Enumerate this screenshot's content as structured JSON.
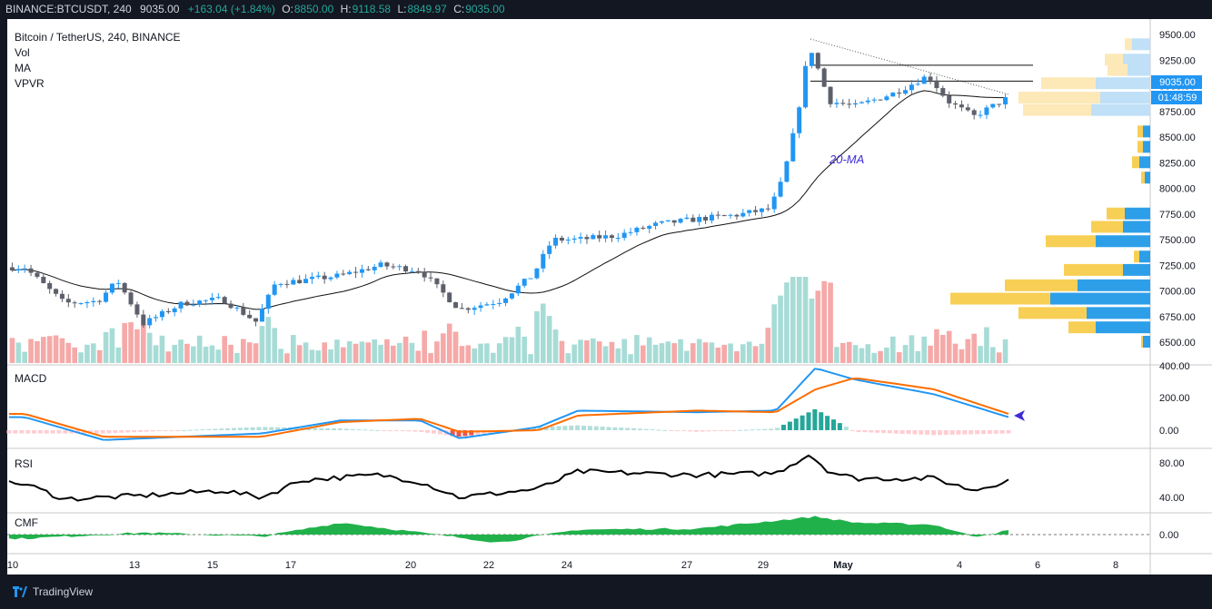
{
  "header": {
    "symbol": "BINANCE:BTCUSDT, 240",
    "last": "9035.00",
    "change": "+163.04 (+1.84%)",
    "o_label": "O:",
    "o": "8850.00",
    "h_label": "H:",
    "h": "9118.58",
    "l_label": "L:",
    "l": "8849.97",
    "c_label": "C:",
    "c": "9035.00"
  },
  "legend": {
    "title": "Bitcoin / TetherUS, 240, BINANCE",
    "items": [
      "Vol",
      "MA",
      "VPVR"
    ]
  },
  "price_axis": {
    "ticks": [
      "9500.00",
      "9250.00",
      "9000.00",
      "8750.00",
      "8500.00",
      "8250.00",
      "8000.00",
      "7750.00",
      "7500.00",
      "7250.00",
      "7000.00",
      "6750.00",
      "6500.00"
    ],
    "current_price": "9035.00",
    "countdown": "01:48:59"
  },
  "annotation": "20-MA",
  "macd": {
    "label": "MACD",
    "ticks": [
      "400.00",
      "200.00",
      "0.00"
    ]
  },
  "rsi": {
    "label": "RSI",
    "ticks": [
      "80.00",
      "40.00"
    ]
  },
  "cmf": {
    "label": "CMF",
    "ticks": [
      "0.00"
    ]
  },
  "x_axis": {
    "labels": [
      "10",
      "13",
      "15",
      "17",
      "20",
      "22",
      "24",
      "27",
      "29",
      "May",
      "4",
      "6",
      "8"
    ]
  },
  "brand": "TradingView",
  "colors": {
    "background": "#131722",
    "up": "#2196f3",
    "down": "#5d606b",
    "vol_up": "#a7dcd6",
    "vol_down": "#f5a9a8",
    "ma": "#000000",
    "macd": "#2196f3",
    "signal": "#ff6d00",
    "cmf": "#21b14b",
    "vpvr_up": "#2d9fe9",
    "vpvr_down": "#f8cf55"
  },
  "chart_data": {
    "type": "candlestick",
    "title": "Bitcoin / TetherUS, 240, BINANCE",
    "timeframe": "240",
    "price_range": [
      6400,
      9600
    ],
    "ohlc_anchor_points": [
      {
        "x": "10",
        "close": 7230
      },
      {
        "x": "11",
        "close": 6880
      },
      {
        "x": "12",
        "close": 6900
      },
      {
        "x": "12",
        "close": 7100
      },
      {
        "x": "13",
        "close": 6680
      },
      {
        "x": "14",
        "close": 6880
      },
      {
        "x": "15",
        "close": 6920
      },
      {
        "x": "16",
        "close": 6700
      },
      {
        "x": "16",
        "close": 7080
      },
      {
        "x": "17",
        "close": 7100
      },
      {
        "x": "18",
        "close": 7150
      },
      {
        "x": "19",
        "close": 7250
      },
      {
        "x": "20",
        "close": 7200
      },
      {
        "x": "21",
        "close": 6820
      },
      {
        "x": "22",
        "close": 6900
      },
      {
        "x": "23",
        "close": 7150
      },
      {
        "x": "23",
        "close": 7500
      },
      {
        "x": "24",
        "close": 7500
      },
      {
        "x": "25",
        "close": 7540
      },
      {
        "x": "26",
        "close": 7650
      },
      {
        "x": "27",
        "close": 7700
      },
      {
        "x": "28",
        "close": 7740
      },
      {
        "x": "29",
        "close": 7800
      },
      {
        "x": "29",
        "close": 8100
      },
      {
        "x": "29",
        "close": 8650
      },
      {
        "x": "30",
        "close": 9400
      },
      {
        "x": "30",
        "close": 8850
      },
      {
        "x": "May",
        "close": 8800
      },
      {
        "x": "2",
        "close": 8930
      },
      {
        "x": "3",
        "close": 9100
      },
      {
        "x": "3",
        "close": 8850
      },
      {
        "x": "4",
        "close": 8700
      },
      {
        "x": "5",
        "close": 8880
      },
      {
        "x": "5",
        "close": 9035
      }
    ],
    "ma_period": 20,
    "resistance_levels": [
      9200,
      9045
    ],
    "macd_range": [
      -120,
      420
    ],
    "macd_anchor_points": [
      {
        "x": "10",
        "macd": 80,
        "signal": 100
      },
      {
        "x": "12",
        "macd": -60,
        "signal": -40
      },
      {
        "x": "16",
        "macd": -20,
        "signal": -40
      },
      {
        "x": "18",
        "macd": 60,
        "signal": 50
      },
      {
        "x": "20",
        "macd": 60,
        "signal": 70
      },
      {
        "x": "21",
        "macd": -50,
        "signal": -10
      },
      {
        "x": "23",
        "macd": 20,
        "signal": 0
      },
      {
        "x": "24",
        "macd": 120,
        "signal": 90
      },
      {
        "x": "27",
        "macd": 110,
        "signal": 120
      },
      {
        "x": "29",
        "macd": 120,
        "signal": 110
      },
      {
        "x": "30",
        "macd": 380,
        "signal": 250
      },
      {
        "x": "May",
        "macd": 310,
        "signal": 320
      },
      {
        "x": "3",
        "macd": 220,
        "signal": 250
      },
      {
        "x": "5",
        "macd": 80,
        "signal": 100
      }
    ],
    "rsi_range": [
      30,
      95
    ],
    "rsi_anchor_points": [
      {
        "x": "10",
        "rsi": 56
      },
      {
        "x": "11",
        "rsi": 38
      },
      {
        "x": "13",
        "rsi": 42
      },
      {
        "x": "15",
        "rsi": 48
      },
      {
        "x": "16",
        "rsi": 40
      },
      {
        "x": "17",
        "rsi": 60
      },
      {
        "x": "19",
        "rsi": 66
      },
      {
        "x": "20",
        "rsi": 58
      },
      {
        "x": "21",
        "rsi": 40
      },
      {
        "x": "23",
        "rsi": 50
      },
      {
        "x": "24",
        "rsi": 70
      },
      {
        "x": "27",
        "rsi": 66
      },
      {
        "x": "29",
        "rsi": 68
      },
      {
        "x": "30",
        "rsi": 90
      },
      {
        "x": "30",
        "rsi": 70
      },
      {
        "x": "May",
        "rsi": 62
      },
      {
        "x": "3",
        "rsi": 62
      },
      {
        "x": "4",
        "rsi": 48
      },
      {
        "x": "5",
        "rsi": 60
      }
    ],
    "cmf_range": [
      -0.15,
      0.25
    ],
    "cmf_anchor_points": [
      {
        "x": "10",
        "cmf": -0.04
      },
      {
        "x": "13",
        "cmf": 0.02
      },
      {
        "x": "16",
        "cmf": -0.02
      },
      {
        "x": "18",
        "cmf": 0.12
      },
      {
        "x": "20",
        "cmf": 0.02
      },
      {
        "x": "22",
        "cmf": -0.08
      },
      {
        "x": "24",
        "cmf": 0.05
      },
      {
        "x": "27",
        "cmf": 0.06
      },
      {
        "x": "30",
        "cmf": 0.18
      },
      {
        "x": "May",
        "cmf": 0.12
      },
      {
        "x": "3",
        "cmf": 0.1
      },
      {
        "x": "4",
        "cmf": -0.02
      },
      {
        "x": "5",
        "cmf": 0.04
      }
    ]
  }
}
